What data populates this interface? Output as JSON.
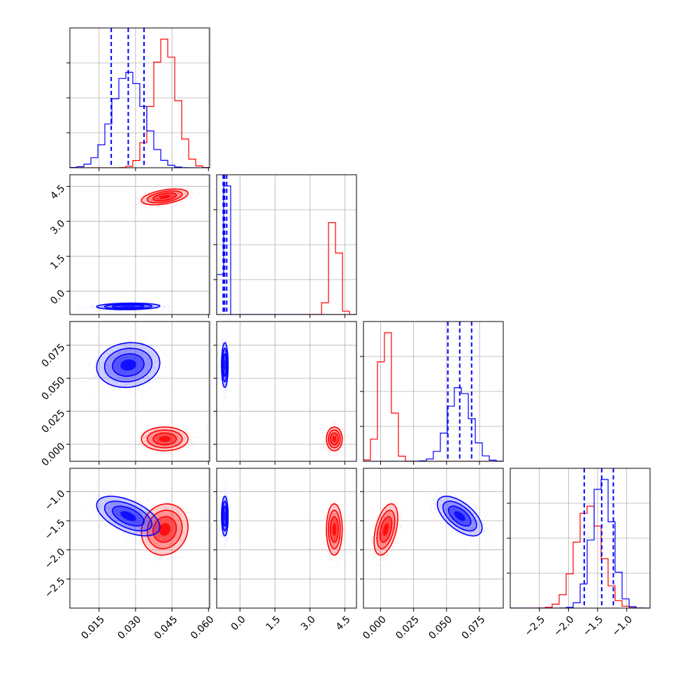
{
  "chart_data": {
    "type": "corner",
    "colors": {
      "red": "#ff0000",
      "blue": "#0000ff"
    },
    "grid": true,
    "params": [
      {
        "range": [
          0.003,
          0.0605
        ],
        "ticks": [
          0.015,
          0.03,
          0.045,
          0.06
        ],
        "tick_labels": [
          "0.015",
          "0.030",
          "0.045",
          "0.060"
        ]
      },
      {
        "range": [
          -1.0,
          5.0
        ],
        "ticks": [
          0.0,
          1.5,
          3.0,
          4.5
        ],
        "tick_labels": [
          "0.0",
          "1.5",
          "3.0",
          "4.5"
        ]
      },
      {
        "range": [
          -0.013,
          0.093
        ],
        "ticks": [
          0.0,
          0.025,
          0.05,
          0.075
        ],
        "tick_labels": [
          "0.000",
          "0.025",
          "0.050",
          "0.075"
        ]
      },
      {
        "range": [
          -3.0,
          -0.6
        ],
        "ticks": [
          -2.5,
          -2.0,
          -1.5,
          -1.0
        ],
        "tick_labels": [
          "−2.5",
          "−2.0",
          "−1.5",
          "−1.0"
        ]
      }
    ],
    "series": [
      {
        "color": "red",
        "mean": [
          0.042,
          4.05,
          0.004,
          -1.65
        ],
        "std": [
          0.0048,
          0.17,
          0.0045,
          0.22
        ],
        "corr": [
          [
            0,
            1,
            0.45
          ],
          [
            2,
            3,
            0.45
          ],
          [
            0,
            3,
            0.1
          ]
        ]
      },
      {
        "color": "blue",
        "mean": [
          0.027,
          -0.65,
          0.06,
          -1.42
        ],
        "std": [
          0.0065,
          0.07,
          0.0085,
          0.17
        ],
        "corr": [
          [
            0,
            1,
            0.1
          ],
          [
            2,
            3,
            -0.6
          ],
          [
            0,
            3,
            -0.55
          ],
          [
            0,
            2,
            0.1
          ]
        ]
      }
    ],
    "quantile_lines": {
      "color": "blue",
      "values": [
        [
          0.02,
          0.027,
          0.0335
        ],
        [
          -0.72,
          -0.66,
          -0.57
        ],
        [
          0.051,
          0.06,
          0.069
        ],
        [
          -1.73,
          -1.43,
          -1.23
        ]
      ]
    }
  }
}
